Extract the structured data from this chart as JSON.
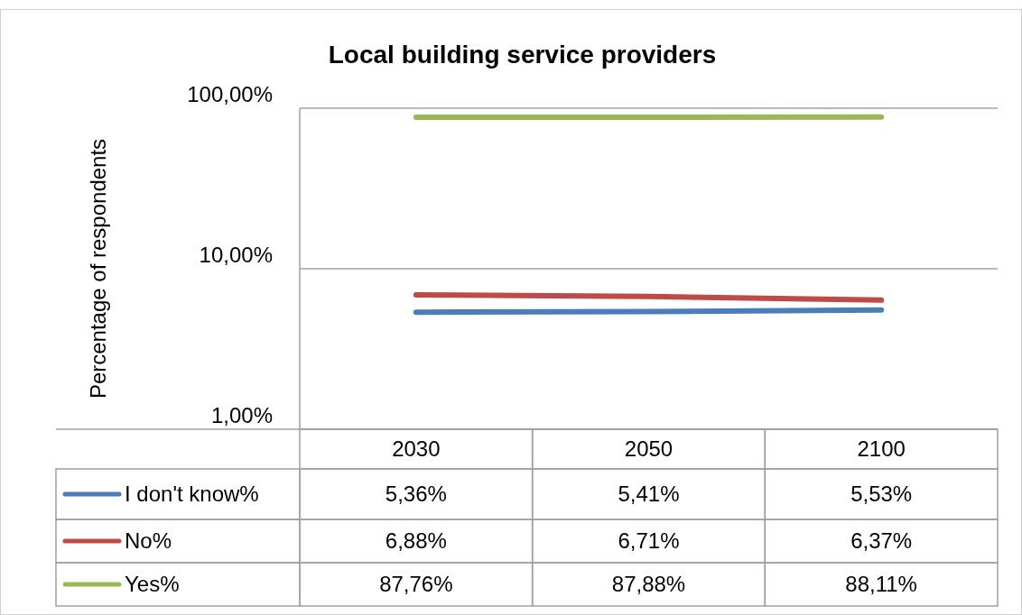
{
  "chart_data": {
    "type": "line",
    "title": "Local building service providers",
    "ylabel": "Percentage of respondents",
    "categories": [
      "2030",
      "2050",
      "2100"
    ],
    "series": [
      {
        "name": "I don't know%",
        "color": "#4a7ebb",
        "values": [
          5.36,
          5.41,
          5.53
        ],
        "value_labels": [
          "5,36%",
          "5,41%",
          "5,53%"
        ]
      },
      {
        "name": "No%",
        "color": "#be4b48",
        "values": [
          6.88,
          6.71,
          6.37
        ],
        "value_labels": [
          "6,88%",
          "6,71%",
          "6,37%"
        ]
      },
      {
        "name": "Yes%",
        "color": "#98b954",
        "values": [
          87.76,
          87.88,
          88.11
        ],
        "value_labels": [
          "87,76%",
          "87,88%",
          "88,11%"
        ]
      }
    ],
    "log": true,
    "ylim": [
      1,
      100
    ],
    "yticks": [
      {
        "value": 1,
        "label": "1,00%"
      },
      {
        "value": 10,
        "label": "10,00%"
      },
      {
        "value": 100,
        "label": "100,00%"
      }
    ],
    "grid": "y",
    "legend": "bottom",
    "marker": "none",
    "line_style": "solid"
  }
}
